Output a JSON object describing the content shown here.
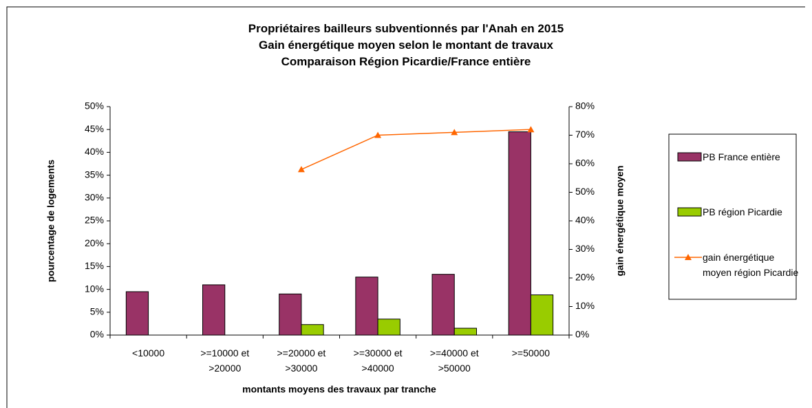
{
  "chart_data": {
    "type": "bar",
    "title": [
      "Propriétaires bailleurs subventionnés par l'Anah en 2015",
      "Gain énergétique moyen selon le montant de travaux",
      "Comparaison Région Picardie/France entière"
    ],
    "x_label": "montants moyens des travaux par tranche",
    "y_label": "pourcentage de logements",
    "y2_label": "gain énergétique moyen",
    "categories": [
      "<10000",
      ">=10000 et >20000",
      ">=20000 et >30000",
      ">=30000 et >40000",
      ">=40000 et >50000",
      ">=50000"
    ],
    "series": [
      {
        "name": "PB France entière",
        "type": "bar",
        "color": "#993366",
        "values": [
          9.5,
          11,
          9,
          12.7,
          13.3,
          44.5
        ]
      },
      {
        "name": "PB région Picardie",
        "type": "bar",
        "color": "#99cc00",
        "values": [
          0,
          0,
          2.3,
          3.5,
          1.5,
          8.8
        ]
      },
      {
        "name": "gain énergétique moyen région Picardie",
        "type": "line",
        "axis": "y2",
        "color": "#ff6600",
        "values": [
          null,
          null,
          58,
          70,
          71,
          72
        ]
      }
    ],
    "ylim": [
      0,
      50
    ],
    "yticks": [
      {
        "value": 0,
        "label": "0%"
      },
      {
        "value": 5,
        "label": "5%"
      },
      {
        "value": 10,
        "label": "10%"
      },
      {
        "value": 15,
        "label": "15%"
      },
      {
        "value": 20,
        "label": "20%"
      },
      {
        "value": 25,
        "label": "25%"
      },
      {
        "value": 30,
        "label": "30%"
      },
      {
        "value": 35,
        "label": "35%"
      },
      {
        "value": 40,
        "label": "40%"
      },
      {
        "value": 45,
        "label": "45%"
      },
      {
        "value": 50,
        "label": "50%"
      }
    ],
    "y2lim": [
      0,
      80
    ],
    "y2ticks": [
      {
        "value": 0,
        "label": "0%"
      },
      {
        "value": 10,
        "label": "10%"
      },
      {
        "value": 20,
        "label": "20%"
      },
      {
        "value": 30,
        "label": "30%"
      },
      {
        "value": 40,
        "label": "40%"
      },
      {
        "value": 50,
        "label": "50%"
      },
      {
        "value": 60,
        "label": "60%"
      },
      {
        "value": 70,
        "label": "70%"
      },
      {
        "value": 80,
        "label": "80%"
      }
    ],
    "legend": "right"
  }
}
